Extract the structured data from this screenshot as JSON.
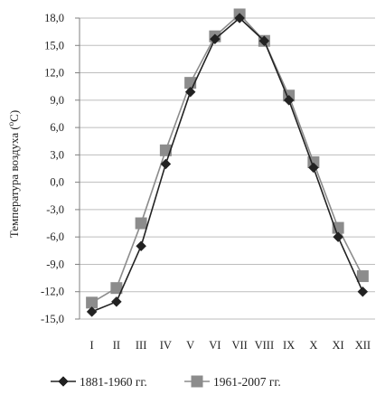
{
  "chart_data": {
    "type": "line",
    "ylabel": "Температура воздуха (°C)",
    "ylabel_parts": {
      "main": "Температура воздуха (",
      "sup": "o",
      "tail": "C)"
    },
    "categories": [
      "I",
      "II",
      "III",
      "IV",
      "V",
      "VI",
      "VII",
      "VIII",
      "IX",
      "X",
      "XI",
      "XII"
    ],
    "ylim": [
      -15,
      18
    ],
    "y_ticks": [
      18,
      15,
      12,
      9,
      6,
      3,
      0,
      -3,
      -6,
      -9,
      -12,
      -15
    ],
    "y_tick_labels": [
      "18,0",
      "15,0",
      "12,0",
      "9,0",
      "6,0",
      "3,0",
      "0,0",
      "-3,0",
      "-6,0",
      "-9,0",
      "-12,0",
      "-15,0"
    ],
    "grid": "horizontal",
    "legend_position": "bottom",
    "series": [
      {
        "name": "1881-1960 гг.",
        "marker": "diamond",
        "color": "#222222",
        "values": [
          -14.2,
          -13.1,
          -7.0,
          2.0,
          9.9,
          15.7,
          18.0,
          15.5,
          9.0,
          1.6,
          -6.0,
          -12.0
        ]
      },
      {
        "name": "1961-2007 гг.",
        "marker": "square",
        "color": "#8c8c8c",
        "values": [
          -13.2,
          -11.6,
          -4.5,
          3.5,
          10.9,
          16.0,
          18.4,
          15.5,
          9.5,
          2.2,
          -5.0,
          -10.3
        ]
      }
    ]
  }
}
